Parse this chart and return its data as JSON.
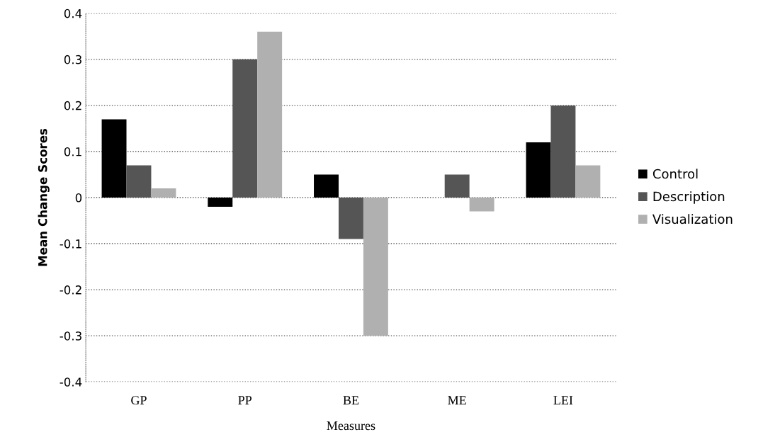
{
  "chart_data": {
    "type": "bar",
    "xlabel": "Measures",
    "ylabel": "Mean Change Scores",
    "categories": [
      "GP",
      "PP",
      "BE",
      "ME",
      "LEI"
    ],
    "series": [
      {
        "name": "Control",
        "color": "#000000",
        "values": [
          0.17,
          -0.02,
          0.05,
          null,
          0.12
        ]
      },
      {
        "name": "Description",
        "color": "#555555",
        "values": [
          0.07,
          0.3,
          -0.09,
          0.05,
          0.2
        ]
      },
      {
        "name": "Visualization",
        "color": "#b0b0b0",
        "values": [
          0.02,
          0.36,
          -0.3,
          -0.03,
          0.07
        ]
      }
    ],
    "ylim": [
      -0.4,
      0.4
    ],
    "yticks": [
      -0.4,
      -0.3,
      -0.2,
      -0.1,
      0,
      0.1,
      0.2,
      0.3,
      0.4
    ],
    "grid": "y",
    "legend": "right"
  }
}
